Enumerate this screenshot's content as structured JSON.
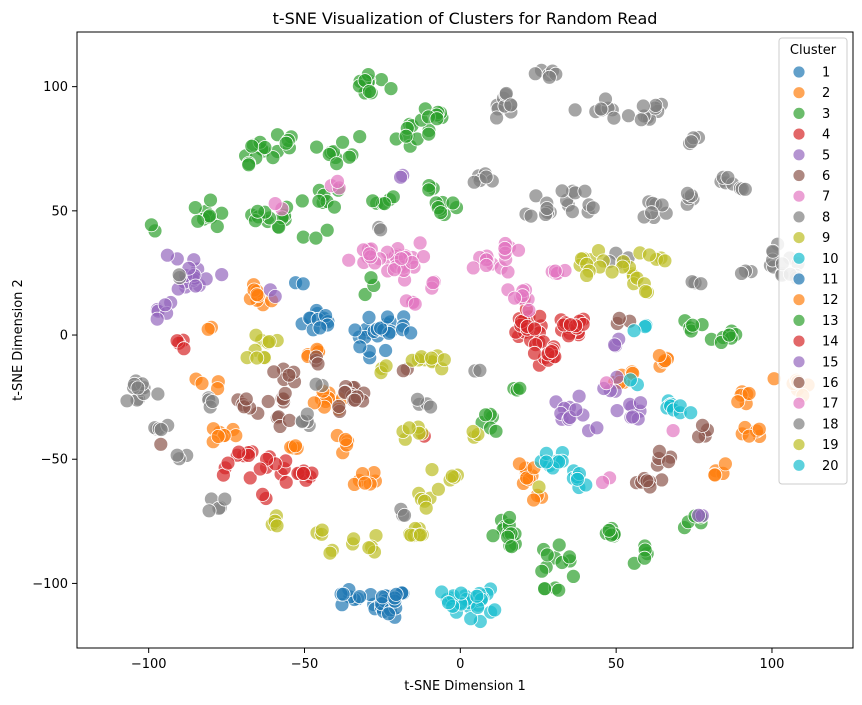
{
  "chart_data": {
    "type": "scatter",
    "title": "t-SNE Visualization of Clusters for Random Read",
    "xlabel": "t-SNE Dimension 1",
    "ylabel": "t-SNE Dimension 2",
    "xlim": [
      -123,
      126
    ],
    "ylim": [
      -126,
      122
    ],
    "xticks": [
      -100,
      -50,
      0,
      50,
      100
    ],
    "yticks": [
      -100,
      -50,
      0,
      50,
      100
    ],
    "grid": false,
    "legend": {
      "title": "Cluster",
      "position": "top-right"
    },
    "point_note": "Points are sampled cluster blobs; each blob is [x, y, spread, count] in data units.",
    "series": [
      {
        "name": "1",
        "color": "#1f77b4",
        "blobs": [
          [
            -45,
            6,
            4,
            14
          ],
          [
            -28,
            0,
            5,
            16
          ],
          [
            -20,
            3,
            4,
            10
          ],
          [
            -23,
            -108,
            4,
            22
          ],
          [
            -36,
            -106,
            3,
            8
          ],
          [
            -52,
            22,
            2,
            2
          ]
        ]
      },
      {
        "name": "2",
        "color": "#ff7f0e",
        "blobs": [
          [
            -65,
            15,
            3,
            10
          ],
          [
            -48,
            -6,
            3,
            5
          ],
          [
            -42,
            -28,
            4,
            10
          ],
          [
            -37,
            -45,
            3,
            5
          ],
          [
            -30,
            -57,
            3,
            7
          ],
          [
            -76,
            -40,
            3,
            8
          ],
          [
            -55,
            -45,
            3,
            5
          ],
          [
            -80,
            -20,
            3,
            4
          ],
          [
            -82,
            1,
            2,
            2
          ],
          [
            20,
            -55,
            4,
            10
          ],
          [
            25,
            -66,
            2,
            3
          ],
          [
            52,
            -16,
            4,
            6
          ],
          [
            66,
            -10,
            3,
            6
          ],
          [
            92,
            -25,
            3,
            6
          ],
          [
            95,
            -38,
            3,
            6
          ],
          [
            82,
            -55,
            3,
            5
          ],
          [
            108,
            -20,
            3,
            8
          ]
        ]
      },
      {
        "name": "3",
        "color": "#2ca02c",
        "blobs": [
          [
            -65,
            75,
            4,
            12
          ],
          [
            -58,
            45,
            4,
            8
          ],
          [
            -80,
            48,
            4,
            10
          ],
          [
            -65,
            48,
            3,
            6
          ],
          [
            -45,
            56,
            4,
            8
          ],
          [
            -30,
            100,
            4,
            14
          ],
          [
            -38,
            75,
            4,
            10
          ],
          [
            -25,
            55,
            3,
            6
          ],
          [
            -15,
            80,
            4,
            10
          ],
          [
            -8,
            88,
            3,
            8
          ],
          [
            -5,
            52,
            4,
            8
          ],
          [
            -55,
            78,
            3,
            5
          ],
          [
            -98,
            45,
            2,
            2
          ],
          [
            -30,
            20,
            2,
            3
          ],
          [
            -45,
            42,
            2,
            2
          ],
          [
            10,
            -35,
            3,
            6
          ],
          [
            15,
            -80,
            4,
            14
          ],
          [
            30,
            -90,
            4,
            10
          ],
          [
            48,
            -82,
            3,
            7
          ],
          [
            60,
            -88,
            3,
            5
          ],
          [
            75,
            -75,
            3,
            6
          ],
          [
            85,
            0,
            4,
            8
          ],
          [
            75,
            4,
            3,
            5
          ],
          [
            18,
            -22,
            2,
            3
          ],
          [
            -10,
            60,
            2,
            3
          ],
          [
            30,
            -102,
            2,
            4
          ]
        ]
      },
      {
        "name": "4",
        "color": "#d62728",
        "blobs": [
          [
            22,
            3,
            5,
            22
          ],
          [
            35,
            2,
            4,
            15
          ],
          [
            28,
            -8,
            4,
            12
          ],
          [
            -60,
            -55,
            4,
            10
          ],
          [
            -50,
            -55,
            3,
            8
          ],
          [
            -70,
            -50,
            3,
            6
          ],
          [
            -75,
            -55,
            2,
            3
          ],
          [
            -90,
            -4,
            2,
            4
          ],
          [
            -62,
            -65,
            2,
            2
          ],
          [
            -10,
            -40,
            1,
            1
          ]
        ]
      },
      {
        "name": "5",
        "color": "#9467bd",
        "blobs": [
          [
            -85,
            22,
            5,
            14
          ],
          [
            -95,
            10,
            3,
            5
          ],
          [
            -88,
            30,
            3,
            4
          ],
          [
            35,
            -30,
            4,
            10
          ],
          [
            55,
            -30,
            3,
            8
          ],
          [
            50,
            -20,
            3,
            4
          ],
          [
            50,
            -5,
            2,
            3
          ],
          [
            78,
            -72,
            2,
            2
          ],
          [
            -60,
            18,
            2,
            2
          ],
          [
            -18,
            65,
            1,
            2
          ],
          [
            42,
            -38,
            2,
            2
          ]
        ]
      },
      {
        "name": "6",
        "color": "#8c564b",
        "blobs": [
          [
            -35,
            -25,
            4,
            14
          ],
          [
            -58,
            -30,
            4,
            8
          ],
          [
            -55,
            -15,
            3,
            7
          ],
          [
            -70,
            -28,
            3,
            6
          ],
          [
            -45,
            -12,
            2,
            3
          ],
          [
            58,
            -60,
            3,
            7
          ],
          [
            65,
            -50,
            3,
            5
          ],
          [
            78,
            -40,
            3,
            4
          ],
          [
            52,
            7,
            2,
            3
          ],
          [
            -18,
            -12,
            2,
            2
          ],
          [
            -95,
            -45,
            1,
            1
          ]
        ]
      },
      {
        "name": "7",
        "color": "#e377c2",
        "blobs": [
          [
            -20,
            30,
            5,
            22
          ],
          [
            -30,
            30,
            4,
            10
          ],
          [
            10,
            28,
            4,
            10
          ],
          [
            20,
            15,
            4,
            8
          ],
          [
            15,
            35,
            3,
            6
          ],
          [
            -15,
            12,
            3,
            4
          ],
          [
            30,
            26,
            3,
            5
          ],
          [
            -40,
            60,
            2,
            3
          ],
          [
            -58,
            52,
            2,
            2
          ],
          [
            -8,
            20,
            2,
            3
          ],
          [
            68,
            -38,
            1,
            1
          ],
          [
            48,
            -58,
            2,
            2
          ],
          [
            48,
            -20,
            1,
            1
          ]
        ]
      },
      {
        "name": "8",
        "color": "#7f7f7f",
        "blobs": [
          [
            -103,
            -22,
            4,
            12
          ],
          [
            -90,
            -48,
            2,
            3
          ],
          [
            -78,
            -68,
            3,
            5
          ],
          [
            -80,
            -25,
            2,
            4
          ],
          [
            -97,
            -38,
            3,
            5
          ],
          [
            15,
            92,
            4,
            10
          ],
          [
            28,
            105,
            3,
            6
          ],
          [
            45,
            90,
            4,
            8
          ],
          [
            60,
            90,
            4,
            10
          ],
          [
            8,
            65,
            3,
            6
          ],
          [
            28,
            52,
            4,
            10
          ],
          [
            40,
            55,
            4,
            8
          ],
          [
            50,
            32,
            3,
            4
          ],
          [
            62,
            50,
            4,
            8
          ],
          [
            72,
            55,
            3,
            5
          ],
          [
            75,
            78,
            2,
            4
          ],
          [
            85,
            62,
            3,
            5
          ],
          [
            90,
            60,
            2,
            3
          ],
          [
            100,
            30,
            4,
            8
          ],
          [
            105,
            25,
            3,
            6
          ],
          [
            90,
            25,
            2,
            3
          ],
          [
            75,
            20,
            2,
            3
          ],
          [
            -12,
            -28,
            2,
            4
          ],
          [
            -50,
            -35,
            3,
            5
          ],
          [
            -20,
            -70,
            2,
            3
          ],
          [
            5,
            -15,
            1,
            2
          ],
          [
            -45,
            -20,
            1,
            2
          ],
          [
            -90,
            24,
            1,
            2
          ],
          [
            -25,
            42,
            1,
            2
          ]
        ]
      },
      {
        "name": "9",
        "color": "#bcbd22",
        "blobs": [
          [
            -65,
            -5,
            4,
            10
          ],
          [
            -10,
            -10,
            4,
            10
          ],
          [
            -15,
            -40,
            3,
            6
          ],
          [
            -5,
            -55,
            3,
            5
          ],
          [
            -10,
            -65,
            3,
            6
          ],
          [
            -15,
            -80,
            3,
            8
          ],
          [
            -30,
            -85,
            3,
            6
          ],
          [
            -60,
            -75,
            3,
            5
          ],
          [
            -45,
            -80,
            2,
            3
          ],
          [
            42,
            28,
            4,
            10
          ],
          [
            55,
            25,
            4,
            8
          ],
          [
            62,
            30,
            3,
            5
          ],
          [
            60,
            18,
            2,
            3
          ],
          [
            -25,
            -15,
            2,
            3
          ],
          [
            -40,
            -88,
            2,
            2
          ],
          [
            25,
            -62,
            1,
            1
          ],
          [
            5,
            -40,
            2,
            3
          ]
        ]
      },
      {
        "name": "10",
        "color": "#17becf",
        "blobs": [
          [
            30,
            -52,
            4,
            10
          ],
          [
            38,
            -58,
            3,
            6
          ],
          [
            68,
            -28,
            3,
            6
          ],
          [
            72,
            -30,
            2,
            3
          ],
          [
            55,
            -18,
            2,
            2
          ],
          [
            58,
            3,
            2,
            3
          ],
          [
            5,
            -108,
            4,
            20
          ],
          [
            -2,
            -106,
            3,
            8
          ]
        ]
      }
    ],
    "legend_entries": [
      {
        "label": "1",
        "color": "#1f77b4"
      },
      {
        "label": "2",
        "color": "#ff7f0e"
      },
      {
        "label": "3",
        "color": "#2ca02c"
      },
      {
        "label": "4",
        "color": "#d62728"
      },
      {
        "label": "5",
        "color": "#9467bd"
      },
      {
        "label": "6",
        "color": "#8c564b"
      },
      {
        "label": "7",
        "color": "#e377c2"
      },
      {
        "label": "8",
        "color": "#7f7f7f"
      },
      {
        "label": "9",
        "color": "#bcbd22"
      },
      {
        "label": "10",
        "color": "#17becf"
      },
      {
        "label": "11",
        "color": "#1f77b4"
      },
      {
        "label": "12",
        "color": "#ff7f0e"
      },
      {
        "label": "13",
        "color": "#2ca02c"
      },
      {
        "label": "14",
        "color": "#d62728"
      },
      {
        "label": "15",
        "color": "#9467bd"
      },
      {
        "label": "16",
        "color": "#8c564b"
      },
      {
        "label": "17",
        "color": "#e377c2"
      },
      {
        "label": "18",
        "color": "#7f7f7f"
      },
      {
        "label": "19",
        "color": "#bcbd22"
      },
      {
        "label": "20",
        "color": "#17becf"
      }
    ]
  }
}
